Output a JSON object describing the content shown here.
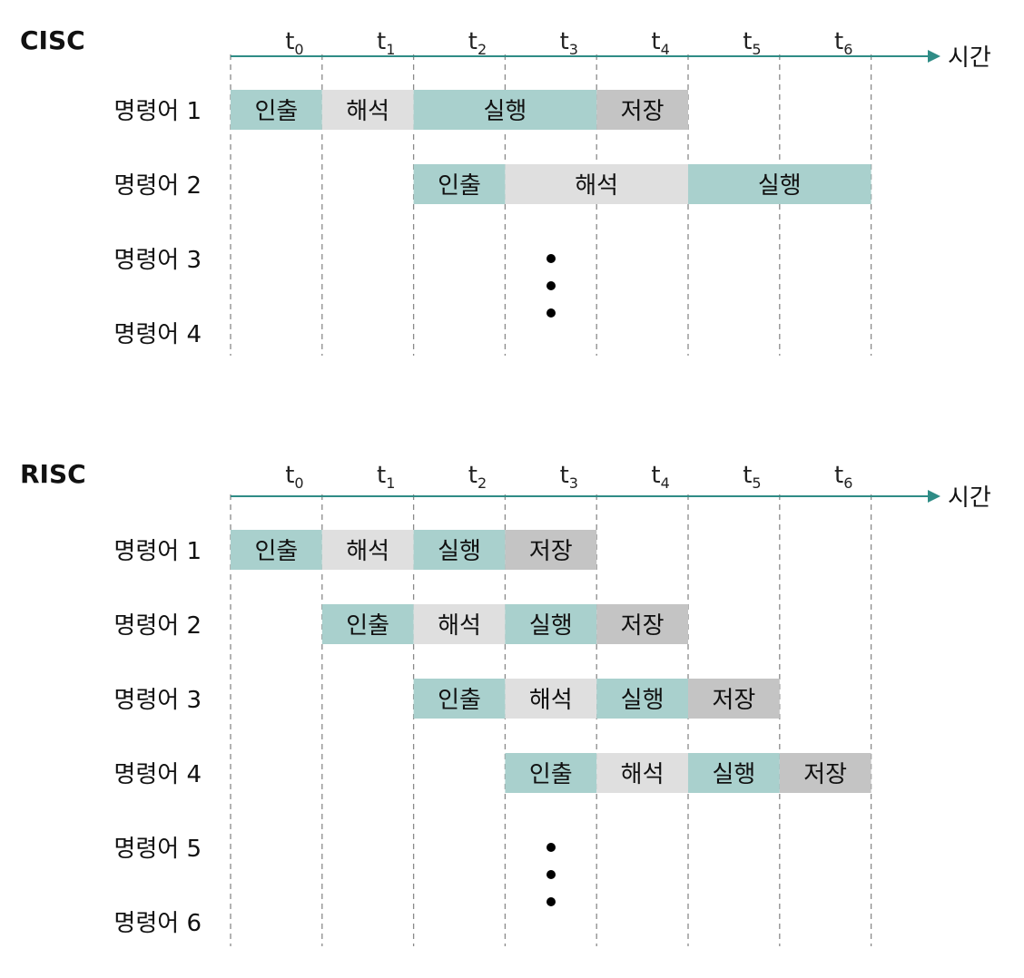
{
  "legend_colors": {
    "인출": "#a9d0cd",
    "해석": "#dfdfdf",
    "실행": "#a9d0cd",
    "저장": "#c4c4c4"
  },
  "axis_color": "#2f8c86",
  "grid_color": "#8a8a8a",
  "time_ticks": [
    {
      "base": "t",
      "sub": "0"
    },
    {
      "base": "t",
      "sub": "1"
    },
    {
      "base": "t",
      "sub": "2"
    },
    {
      "base": "t",
      "sub": "3"
    },
    {
      "base": "t",
      "sub": "4"
    },
    {
      "base": "t",
      "sub": "5"
    },
    {
      "base": "t",
      "sub": "6"
    }
  ],
  "axis_label": "시간",
  "diagrams": [
    {
      "title": "CISC",
      "rows": [
        {
          "label": "명령어 1",
          "segments": [
            {
              "stage": "인출",
              "start": 0,
              "end": 1
            },
            {
              "stage": "해석",
              "start": 1,
              "end": 2
            },
            {
              "stage": "실행",
              "start": 2,
              "end": 4
            },
            {
              "stage": "저장",
              "start": 4,
              "end": 5
            }
          ]
        },
        {
          "label": "명령어 2",
          "segments": [
            {
              "stage": "인출",
              "start": 2,
              "end": 3
            },
            {
              "stage": "해석",
              "start": 3,
              "end": 5
            },
            {
              "stage": "실행",
              "start": 5,
              "end": 7
            }
          ]
        },
        {
          "label": "명령어 3",
          "segments": []
        },
        {
          "label": "명령어 4",
          "segments": []
        }
      ],
      "ellipsis_after_row": 2
    },
    {
      "title": "RISC",
      "rows": [
        {
          "label": "명령어 1",
          "segments": [
            {
              "stage": "인출",
              "start": 0,
              "end": 1
            },
            {
              "stage": "해석",
              "start": 1,
              "end": 2
            },
            {
              "stage": "실행",
              "start": 2,
              "end": 3
            },
            {
              "stage": "저장",
              "start": 3,
              "end": 4
            }
          ]
        },
        {
          "label": "명령어 2",
          "segments": [
            {
              "stage": "인출",
              "start": 1,
              "end": 2
            },
            {
              "stage": "해석",
              "start": 2,
              "end": 3
            },
            {
              "stage": "실행",
              "start": 3,
              "end": 4
            },
            {
              "stage": "저장",
              "start": 4,
              "end": 5
            }
          ]
        },
        {
          "label": "명령어 3",
          "segments": [
            {
              "stage": "인출",
              "start": 2,
              "end": 3
            },
            {
              "stage": "해석",
              "start": 3,
              "end": 4
            },
            {
              "stage": "실행",
              "start": 4,
              "end": 5
            },
            {
              "stage": "저장",
              "start": 5,
              "end": 6
            }
          ]
        },
        {
          "label": "명령어 4",
          "segments": [
            {
              "stage": "인출",
              "start": 3,
              "end": 4
            },
            {
              "stage": "해석",
              "start": 4,
              "end": 5
            },
            {
              "stage": "실행",
              "start": 5,
              "end": 6
            },
            {
              "stage": "저장",
              "start": 6,
              "end": 7
            }
          ]
        },
        {
          "label": "명령어 5",
          "segments": []
        },
        {
          "label": "명령어 6",
          "segments": []
        }
      ],
      "ellipsis_after_row": 4
    }
  ]
}
